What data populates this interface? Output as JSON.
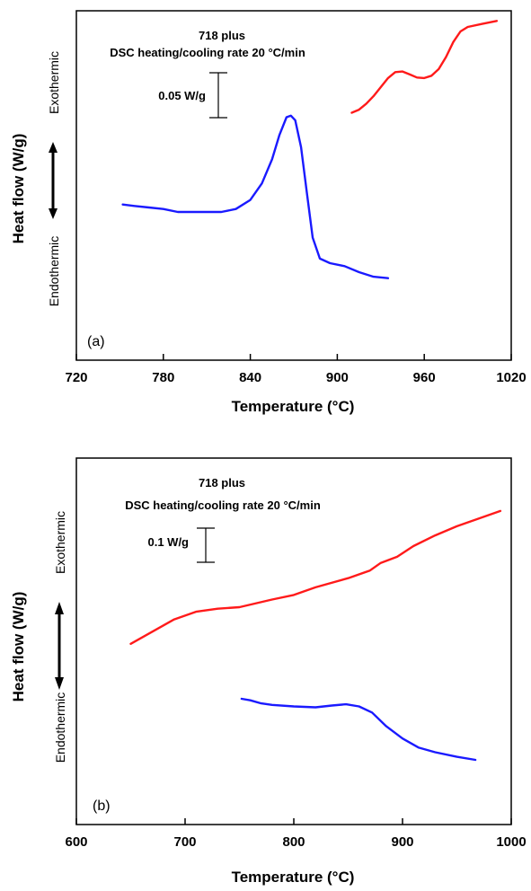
{
  "chart_data": [
    {
      "type": "line",
      "panel_label": "(a)",
      "title_line1": "718 plus",
      "title_line2": "DSC heating/cooling rate 20 °C/min",
      "scale_bar_label": "0.05 W/g",
      "scale_bar_value": 0.05,
      "xlabel": "Temperature (°C)",
      "ylabel": "Heat flow (W/g)",
      "ylabel_top": "Exothermic",
      "ylabel_bottom": "Endothermic",
      "xlim": [
        720,
        1020
      ],
      "ylim": [
        0,
        1
      ],
      "xticks": [
        720,
        780,
        840,
        900,
        960,
        1020
      ],
      "xtick_labels": [
        "720",
        "780",
        "840",
        "900",
        "960",
        "1020"
      ],
      "series": [
        {
          "color": "#ff1a1a",
          "points": [
            [
              910,
              0.715
            ],
            [
              915,
              0.725
            ],
            [
              920,
              0.745
            ],
            [
              925,
              0.77
            ],
            [
              930,
              0.8
            ],
            [
              935,
              0.83
            ],
            [
              940,
              0.85
            ],
            [
              945,
              0.852
            ],
            [
              950,
              0.842
            ],
            [
              955,
              0.832
            ],
            [
              960,
              0.83
            ],
            [
              965,
              0.838
            ],
            [
              970,
              0.86
            ],
            [
              975,
              0.9
            ],
            [
              980,
              0.95
            ],
            [
              985,
              0.985
            ],
            [
              990,
              1.0
            ],
            [
              1000,
              1.01
            ],
            [
              1010,
              1.02
            ]
          ]
        },
        {
          "color": "#1a1aff",
          "points": [
            [
              752,
              0.41
            ],
            [
              760,
              0.405
            ],
            [
              770,
              0.4
            ],
            [
              780,
              0.395
            ],
            [
              790,
              0.385
            ],
            [
              800,
              0.385
            ],
            [
              810,
              0.385
            ],
            [
              820,
              0.385
            ],
            [
              830,
              0.395
            ],
            [
              840,
              0.425
            ],
            [
              848,
              0.48
            ],
            [
              855,
              0.56
            ],
            [
              860,
              0.64
            ],
            [
              865,
              0.7
            ],
            [
              868,
              0.705
            ],
            [
              871,
              0.69
            ],
            [
              875,
              0.6
            ],
            [
              879,
              0.45
            ],
            [
              883,
              0.3
            ],
            [
              888,
              0.23
            ],
            [
              895,
              0.215
            ],
            [
              905,
              0.205
            ],
            [
              915,
              0.185
            ],
            [
              925,
              0.17
            ],
            [
              935,
              0.165
            ]
          ]
        }
      ]
    },
    {
      "type": "line",
      "panel_label": "(b)",
      "title_line1": "718 plus",
      "title_line2": "DSC heating/cooling rate 20 °C/min",
      "scale_bar_label": "0.1 W/g",
      "scale_bar_value": 0.1,
      "xlabel": "Temperature (°C)",
      "ylabel": "Heat flow (W/g)",
      "ylabel_top": "Exothermic",
      "ylabel_bottom": "Endothermic",
      "xlim": [
        600,
        1000
      ],
      "ylim": [
        0,
        1
      ],
      "xticks": [
        600,
        700,
        800,
        900,
        1000
      ],
      "xtick_labels": [
        "600",
        "700",
        "800",
        "900",
        "1000"
      ],
      "series": [
        {
          "color": "#ff1a1a",
          "points": [
            [
              650,
              0.48
            ],
            [
              670,
              0.52
            ],
            [
              690,
              0.56
            ],
            [
              710,
              0.585
            ],
            [
              730,
              0.595
            ],
            [
              750,
              0.6
            ],
            [
              780,
              0.625
            ],
            [
              800,
              0.64
            ],
            [
              820,
              0.665
            ],
            [
              850,
              0.695
            ],
            [
              870,
              0.72
            ],
            [
              880,
              0.745
            ],
            [
              895,
              0.765
            ],
            [
              910,
              0.8
            ],
            [
              930,
              0.835
            ],
            [
              950,
              0.865
            ],
            [
              970,
              0.89
            ],
            [
              990,
              0.915
            ]
          ]
        },
        {
          "color": "#1a1aff",
          "points": [
            [
              752,
              0.3
            ],
            [
              760,
              0.295
            ],
            [
              770,
              0.285
            ],
            [
              780,
              0.28
            ],
            [
              800,
              0.275
            ],
            [
              820,
              0.272
            ],
            [
              835,
              0.278
            ],
            [
              848,
              0.282
            ],
            [
              860,
              0.275
            ],
            [
              872,
              0.255
            ],
            [
              885,
              0.21
            ],
            [
              900,
              0.17
            ],
            [
              915,
              0.14
            ],
            [
              930,
              0.125
            ],
            [
              950,
              0.11
            ],
            [
              967,
              0.1
            ]
          ]
        }
      ]
    }
  ]
}
